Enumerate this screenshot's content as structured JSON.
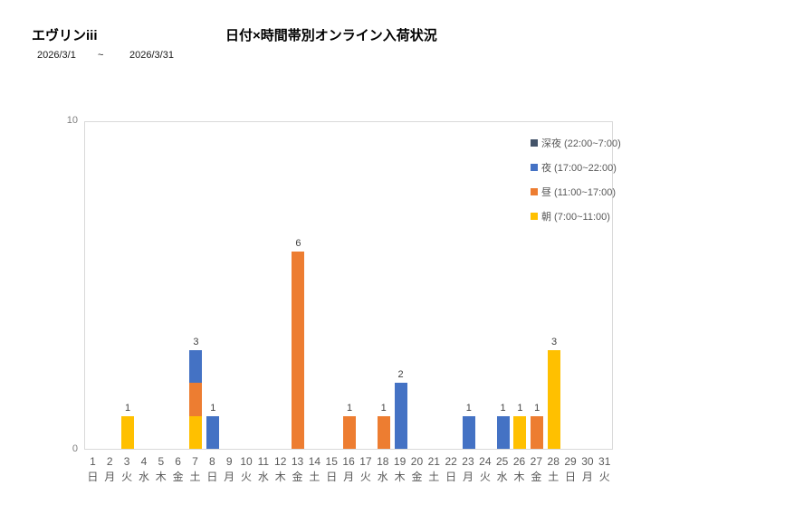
{
  "header": {
    "report_title": "エヴリンiii",
    "date_start": "2026/3/1",
    "date_separator": "~",
    "date_end": "2026/3/31"
  },
  "chart_data": {
    "type": "bar",
    "stacked": true,
    "title": "日付×時間帯別オンライン入荷状況",
    "xlabel": "",
    "ylabel": "",
    "ylim": [
      0,
      10
    ],
    "yticks": [
      0,
      10
    ],
    "grid": false,
    "legend_position": "right-top-vertical",
    "categories": [
      1,
      2,
      3,
      4,
      5,
      6,
      7,
      8,
      9,
      10,
      11,
      12,
      13,
      14,
      15,
      16,
      17,
      18,
      19,
      20,
      21,
      22,
      23,
      24,
      25,
      26,
      27,
      28,
      29,
      30,
      31
    ],
    "weekday_labels": [
      "日",
      "月",
      "火",
      "水",
      "木",
      "金",
      "土",
      "日",
      "月",
      "火",
      "水",
      "木",
      "金",
      "土",
      "日",
      "月",
      "火",
      "水",
      "木",
      "金",
      "土",
      "日",
      "月",
      "火",
      "水",
      "木",
      "金",
      "土",
      "日",
      "月",
      "火"
    ],
    "series": [
      {
        "name": "朝 (7:00~11:00)",
        "color": "#FFC000",
        "values": [
          0,
          0,
          1,
          0,
          0,
          0,
          1,
          0,
          0,
          0,
          0,
          0,
          0,
          0,
          0,
          0,
          0,
          0,
          0,
          0,
          0,
          0,
          0,
          0,
          0,
          1,
          0,
          3,
          0,
          0,
          0
        ]
      },
      {
        "name": "昼 (11:00~17:00)",
        "color": "#ED7D31",
        "values": [
          0,
          0,
          0,
          0,
          0,
          0,
          1,
          0,
          0,
          0,
          0,
          0,
          6,
          0,
          0,
          1,
          0,
          1,
          0,
          0,
          0,
          0,
          0,
          0,
          0,
          0,
          1,
          0,
          0,
          0,
          0
        ]
      },
      {
        "name": "夜 (17:00~22:00)",
        "color": "#4472C4",
        "values": [
          0,
          0,
          0,
          0,
          0,
          0,
          1,
          1,
          0,
          0,
          0,
          0,
          0,
          0,
          0,
          0,
          0,
          0,
          2,
          0,
          0,
          0,
          1,
          0,
          1,
          0,
          0,
          0,
          0,
          0,
          0
        ]
      },
      {
        "name": "深夜 (22:00~7:00)",
        "color": "#44546A",
        "values": [
          0,
          0,
          0,
          0,
          0,
          0,
          0,
          0,
          0,
          0,
          0,
          0,
          0,
          0,
          0,
          0,
          0,
          0,
          0,
          0,
          0,
          0,
          0,
          0,
          0,
          0,
          0,
          0,
          0,
          0,
          0
        ]
      }
    ],
    "legend_order": [
      "深夜 (22:00~7:00)",
      "夜 (17:00~22:00)",
      "昼 (11:00~17:00)",
      "朝 (7:00~11:00)"
    ],
    "bar_total_labels": {
      "3": 1,
      "7": 3,
      "8": 1,
      "13": 6,
      "16": 1,
      "18": 1,
      "19": 2,
      "23": 1,
      "25": 1,
      "26": 1,
      "27": 1,
      "28": 3
    }
  }
}
